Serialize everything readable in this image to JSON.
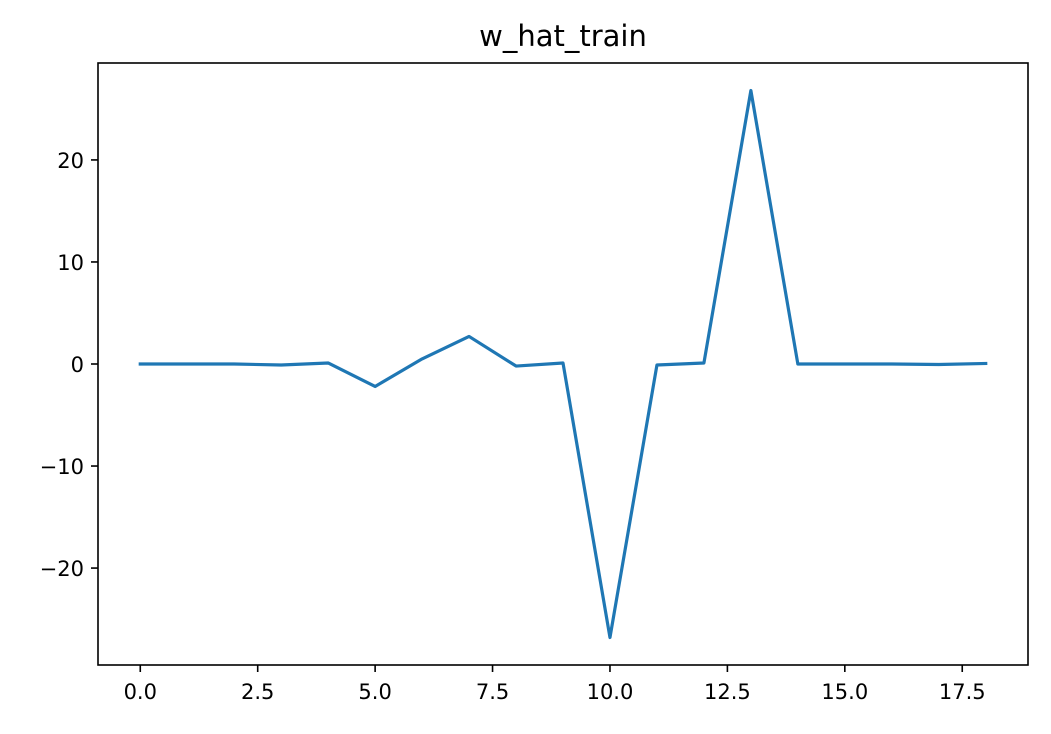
{
  "chart_data": {
    "type": "line",
    "title": "w_hat_train",
    "xlabel": "",
    "ylabel": "",
    "xlim": [
      -0.9,
      18.9
    ],
    "ylim": [
      -29.5,
      29.5
    ],
    "x_ticks": [
      0.0,
      2.5,
      5.0,
      7.5,
      10.0,
      12.5,
      15.0,
      17.5
    ],
    "x_tick_labels": [
      "0.0",
      "2.5",
      "5.0",
      "7.5",
      "10.0",
      "12.5",
      "15.0",
      "17.5"
    ],
    "y_ticks": [
      -20,
      -10,
      0,
      10,
      20
    ],
    "y_tick_labels": [
      "−20",
      "−10",
      "0",
      "10",
      "20"
    ],
    "grid": false,
    "series": [
      {
        "color": "#1f77b4",
        "x": [
          0,
          1,
          2,
          3,
          4,
          5,
          6,
          7,
          8,
          9,
          10,
          11,
          12,
          13,
          14,
          15,
          16,
          17,
          18
        ],
        "values": [
          0.0,
          0.0,
          0.0,
          -0.1,
          0.1,
          -2.2,
          0.5,
          2.7,
          -0.2,
          0.1,
          -26.8,
          -0.1,
          0.1,
          26.8,
          0.0,
          0.0,
          0.0,
          -0.05,
          0.05
        ]
      }
    ]
  }
}
